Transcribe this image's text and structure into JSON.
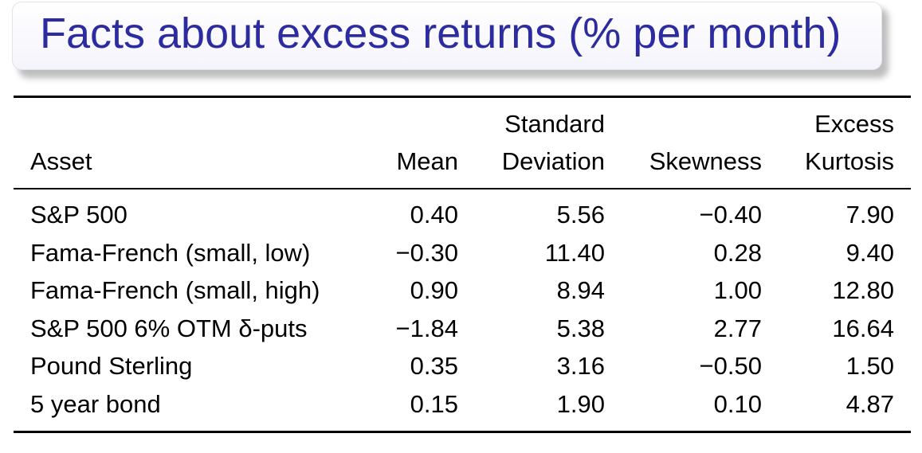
{
  "slide": {
    "title": "Facts about excess returns (% per month)"
  },
  "table": {
    "headers": {
      "asset": "Asset",
      "mean": "Mean",
      "std_line1": "Standard",
      "std_line2": "Deviation",
      "skew": "Skewness",
      "kurt_line1": "Excess",
      "kurt_line2": "Kurtosis"
    },
    "rows": [
      {
        "asset": "S&P 500",
        "mean": "0.40",
        "std": "5.56",
        "skew": "−0.40",
        "kurt": "7.90"
      },
      {
        "asset": "Fama-French (small, low)",
        "mean": "−0.30",
        "std": "11.40",
        "skew": "0.28",
        "kurt": "9.40"
      },
      {
        "asset": "Fama-French (small, high)",
        "mean": "0.90",
        "std": "8.94",
        "skew": "1.00",
        "kurt": "12.80"
      },
      {
        "asset": "S&P 500 6% OTM δ-puts",
        "mean": "−1.84",
        "std": "5.38",
        "skew": "2.77",
        "kurt": "16.64"
      },
      {
        "asset": "Pound Sterling",
        "mean": "0.35",
        "std": "3.16",
        "skew": "−0.50",
        "kurt": "1.50"
      },
      {
        "asset": "5 year bond",
        "mean": "0.15",
        "std": "1.90",
        "skew": "0.10",
        "kurt": "4.87"
      }
    ]
  }
}
